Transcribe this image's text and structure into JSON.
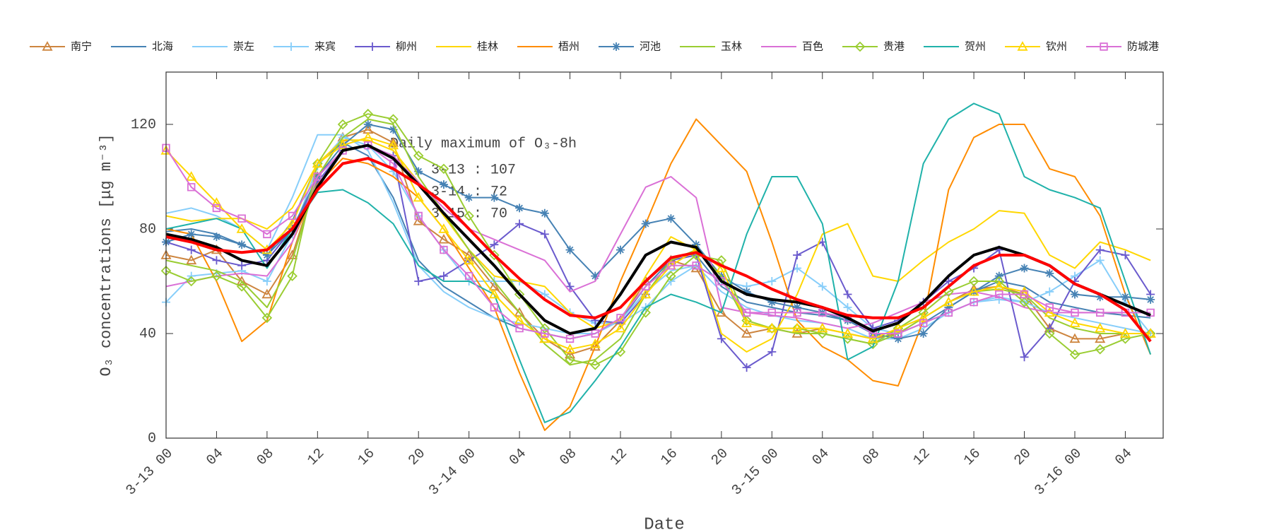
{
  "chart_data": {
    "type": "line",
    "ylabel": "O₃ concentrations [μg m⁻³]",
    "xlabel": "Date",
    "annotation": [
      "Daily maximum of O₃-8h",
      "3-13 : 107",
      "3-14 : 72",
      "3-15 : 70"
    ],
    "xlim": [
      0,
      79
    ],
    "ylim": [
      0,
      140
    ],
    "yticks": [
      0,
      40,
      80,
      120
    ],
    "xticks": [
      {
        "value": 0,
        "label": "3-13 00"
      },
      {
        "value": 4,
        "label": "04"
      },
      {
        "value": 8,
        "label": "08"
      },
      {
        "value": 12,
        "label": "12"
      },
      {
        "value": 16,
        "label": "16"
      },
      {
        "value": 20,
        "label": "20"
      },
      {
        "value": 24,
        "label": "3-14 00"
      },
      {
        "value": 28,
        "label": "04"
      },
      {
        "value": 32,
        "label": "08"
      },
      {
        "value": 36,
        "label": "12"
      },
      {
        "value": 40,
        "label": "16"
      },
      {
        "value": 44,
        "label": "20"
      },
      {
        "value": 48,
        "label": "3-15 00"
      },
      {
        "value": 52,
        "label": "04"
      },
      {
        "value": 56,
        "label": "08"
      },
      {
        "value": 60,
        "label": "12"
      },
      {
        "value": 64,
        "label": "16"
      },
      {
        "value": 68,
        "label": "20"
      },
      {
        "value": 72,
        "label": "3-16 00"
      },
      {
        "value": 76,
        "label": "04"
      }
    ],
    "x": [
      0,
      2,
      4,
      6,
      8,
      10,
      12,
      14,
      16,
      18,
      20,
      22,
      24,
      26,
      28,
      30,
      32,
      34,
      36,
      38,
      40,
      42,
      44,
      46,
      48,
      50,
      52,
      54,
      56,
      58,
      60,
      62,
      64,
      66,
      68,
      70,
      72,
      74,
      76,
      78
    ],
    "series": [
      {
        "name": "南宁",
        "color": "#cd853f",
        "marker": "triangle",
        "values": [
          70,
          68,
          72,
          60,
          55,
          70,
          100,
          115,
          118,
          113,
          83,
          76,
          70,
          58,
          48,
          38,
          32,
          35,
          45,
          60,
          68,
          65,
          48,
          40,
          42,
          40,
          42,
          40,
          38,
          40,
          46,
          52,
          57,
          58,
          55,
          42,
          38,
          38,
          40,
          40
        ]
      },
      {
        "name": "北海",
        "color": "#4682b4",
        "marker": "none",
        "values": [
          79,
          80,
          78,
          74,
          70,
          83,
          105,
          113,
          108,
          92,
          68,
          58,
          52,
          46,
          42,
          40,
          38,
          40,
          45,
          58,
          68,
          70,
          58,
          52,
          50,
          48,
          47,
          45,
          40,
          40,
          44,
          50,
          56,
          60,
          58,
          52,
          50,
          48,
          47,
          46
        ]
      },
      {
        "name": "崇左",
        "color": "#87cefa",
        "marker": "none",
        "values": [
          86,
          88,
          85,
          80,
          72,
          92,
          116,
          116,
          110,
          90,
          66,
          56,
          50,
          46,
          44,
          42,
          40,
          40,
          45,
          56,
          64,
          66,
          56,
          50,
          47,
          45,
          44,
          42,
          38,
          38,
          42,
          48,
          52,
          54,
          52,
          48,
          46,
          44,
          42,
          40
        ]
      },
      {
        "name": "来宾",
        "color": "#87cefa",
        "marker": "plus",
        "values": [
          52,
          62,
          63,
          64,
          60,
          78,
          104,
          115,
          112,
          102,
          85,
          72,
          60,
          60,
          60,
          55,
          48,
          44,
          44,
          50,
          60,
          66,
          60,
          58,
          60,
          65,
          58,
          50,
          42,
          40,
          44,
          48,
          52,
          53,
          52,
          56,
          62,
          68,
          52,
          40
        ]
      },
      {
        "name": "柳州",
        "color": "#6a5acd",
        "marker": "plus",
        "values": [
          75,
          72,
          68,
          66,
          68,
          80,
          98,
          110,
          112,
          108,
          60,
          62,
          68,
          74,
          82,
          78,
          58,
          45,
          44,
          55,
          68,
          70,
          38,
          27,
          33,
          70,
          75,
          55,
          42,
          45,
          52,
          60,
          65,
          72,
          31,
          42,
          60,
          72,
          70,
          55
        ]
      },
      {
        "name": "桂林",
        "color": "#ffd700",
        "marker": "none",
        "values": [
          85,
          83,
          84,
          84,
          80,
          88,
          105,
          114,
          114,
          110,
          98,
          85,
          72,
          62,
          60,
          58,
          48,
          42,
          45,
          62,
          77,
          72,
          40,
          33,
          38,
          55,
          78,
          82,
          62,
          60,
          68,
          75,
          80,
          87,
          86,
          70,
          65,
          75,
          72,
          68
        ]
      },
      {
        "name": "梧州",
        "color": "#ff8c00",
        "marker": "none",
        "values": [
          80,
          78,
          60,
          37,
          45,
          75,
          97,
          107,
          105,
          100,
          92,
          80,
          65,
          50,
          25,
          3,
          12,
          35,
          60,
          82,
          105,
          122,
          112,
          102,
          75,
          45,
          35,
          30,
          22,
          20,
          45,
          95,
          115,
          120,
          120,
          103,
          100,
          85,
          55,
          32
        ]
      },
      {
        "name": "河池",
        "color": "#4682b4",
        "marker": "star",
        "values": [
          75,
          78,
          77,
          74,
          70,
          80,
          100,
          112,
          120,
          118,
          102,
          97,
          92,
          92,
          88,
          86,
          72,
          62,
          72,
          82,
          84,
          74,
          62,
          56,
          52,
          50,
          48,
          45,
          40,
          38,
          40,
          50,
          56,
          62,
          65,
          63,
          55,
          54,
          54,
          53
        ]
      },
      {
        "name": "玉林",
        "color": "#9acd32",
        "marker": "none",
        "values": [
          68,
          66,
          64,
          60,
          50,
          68,
          100,
          115,
          122,
          120,
          100,
          86,
          72,
          60,
          48,
          36,
          28,
          30,
          38,
          55,
          68,
          72,
          62,
          44,
          42,
          40,
          40,
          38,
          36,
          40,
          46,
          52,
          56,
          57,
          55,
          46,
          42,
          40,
          40,
          40
        ]
      },
      {
        "name": "百色",
        "color": "#da70d6",
        "marker": "none",
        "values": [
          58,
          60,
          62,
          63,
          62,
          75,
          100,
          110,
          112,
          108,
          98,
          88,
          80,
          76,
          72,
          68,
          56,
          60,
          78,
          96,
          100,
          92,
          50,
          48,
          47,
          46,
          44,
          42,
          44,
          48,
          52,
          55,
          56,
          54,
          50,
          48,
          48,
          48,
          48,
          48
        ]
      },
      {
        "name": "贵港",
        "color": "#9acd32",
        "marker": "diamond",
        "values": [
          64,
          60,
          62,
          58,
          46,
          62,
          105,
          120,
          124,
          122,
          108,
          103,
          85,
          70,
          55,
          42,
          30,
          28,
          33,
          48,
          62,
          70,
          68,
          45,
          42,
          42,
          40,
          38,
          36,
          42,
          48,
          56,
          60,
          60,
          52,
          40,
          32,
          34,
          38,
          40
        ]
      },
      {
        "name": "贺州",
        "color": "#20b2aa",
        "marker": "none",
        "values": [
          80,
          82,
          84,
          80,
          65,
          80,
          94,
          95,
          90,
          82,
          66,
          60,
          60,
          55,
          30,
          6,
          10,
          22,
          35,
          50,
          55,
          52,
          48,
          78,
          100,
          100,
          82,
          30,
          35,
          60,
          105,
          122,
          128,
          124,
          100,
          95,
          92,
          88,
          60,
          32
        ]
      },
      {
        "name": "钦州",
        "color": "#ffd700",
        "marker": "triangle",
        "values": [
          110,
          100,
          90,
          80,
          72,
          82,
          105,
          112,
          115,
          112,
          92,
          80,
          68,
          55,
          45,
          38,
          34,
          36,
          42,
          55,
          66,
          72,
          65,
          44,
          42,
          42,
          42,
          40,
          38,
          42,
          46,
          52,
          56,
          58,
          56,
          48,
          44,
          42,
          40,
          40
        ]
      },
      {
        "name": "防城港",
        "color": "#da70d6",
        "marker": "square",
        "values": [
          111,
          96,
          88,
          84,
          78,
          85,
          100,
          110,
          112,
          105,
          85,
          72,
          62,
          50,
          42,
          40,
          38,
          40,
          46,
          58,
          66,
          66,
          60,
          48,
          48,
          48,
          48,
          46,
          40,
          40,
          44,
          48,
          52,
          55,
          55,
          50,
          48,
          48,
          48,
          48
        ]
      },
      {
        "color": "#000000",
        "marker": "none",
        "width": 4,
        "values": [
          78,
          76,
          73,
          68,
          66,
          78,
          96,
          110,
          112,
          107,
          97,
          86,
          76,
          66,
          55,
          45,
          40,
          42,
          55,
          70,
          75,
          73,
          60,
          55,
          53,
          52,
          50,
          46,
          41,
          44,
          52,
          62,
          70,
          73,
          70,
          66,
          59,
          55,
          51,
          47
        ]
      },
      {
        "color": "#ff0000",
        "marker": "none",
        "width": 4,
        "values": [
          77,
          75,
          72,
          71,
          72,
          80,
          95,
          105,
          107,
          103,
          97,
          90,
          80,
          70,
          61,
          53,
          47,
          46,
          50,
          60,
          69,
          71,
          66,
          62,
          57,
          53,
          50,
          47,
          46,
          46,
          50,
          58,
          66,
          70,
          70,
          66,
          59,
          55,
          49,
          37
        ]
      }
    ]
  }
}
